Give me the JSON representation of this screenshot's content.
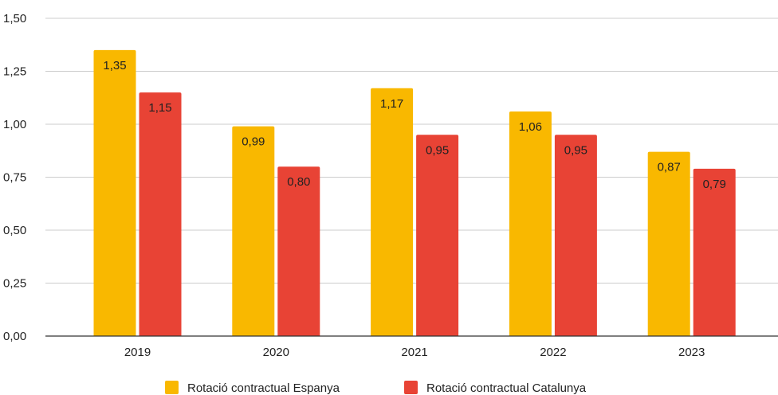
{
  "chart_data": {
    "type": "bar",
    "title": "",
    "xlabel": "",
    "ylabel": "",
    "categories": [
      "2019",
      "2020",
      "2021",
      "2022",
      "2023"
    ],
    "series": [
      {
        "name": "Rotació contractual Espanya",
        "color": "#F9B800",
        "values": [
          1.35,
          0.99,
          1.17,
          1.06,
          0.87
        ],
        "labels": [
          "1,35",
          "0,99",
          "1,17",
          "1,06",
          "0,87"
        ]
      },
      {
        "name": "Rotació contractual Catalunya",
        "color": "#E84335",
        "values": [
          1.15,
          0.8,
          0.95,
          0.95,
          0.79
        ],
        "labels": [
          "1,15",
          "0,80",
          "0,95",
          "0,95",
          "0,79"
        ]
      }
    ],
    "ylim": [
      0,
      1.5
    ],
    "yticks": [
      0,
      0.25,
      0.5,
      0.75,
      1.0,
      1.25,
      1.5
    ],
    "ytick_labels": [
      "0,00",
      "0,25",
      "0,50",
      "0,75",
      "1,00",
      "1,25",
      "1,50"
    ],
    "grid": true,
    "legend_position": "bottom"
  }
}
